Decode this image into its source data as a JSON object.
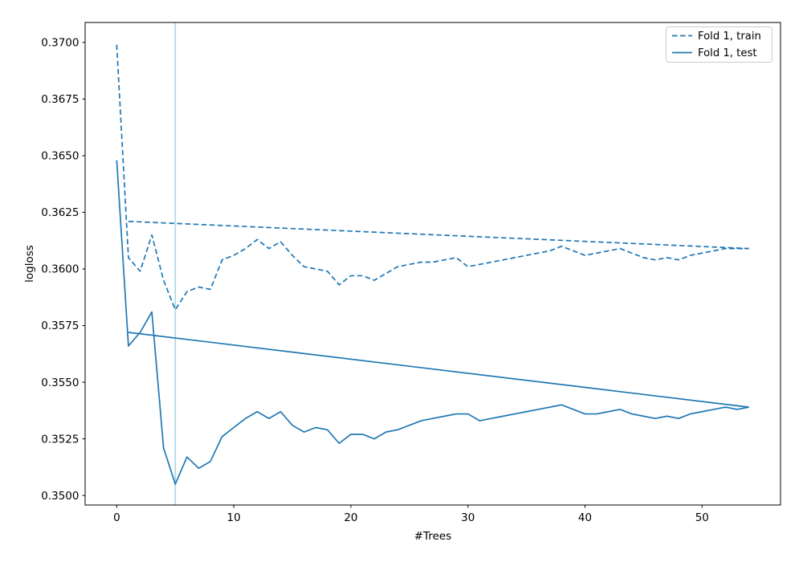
{
  "chart_data": {
    "type": "line",
    "title": "",
    "xlabel": "#Trees",
    "ylabel": "logloss",
    "xlim": [
      -2.7,
      56.7
    ],
    "ylim": [
      0.34958,
      0.37088
    ],
    "grid": false,
    "legend_position": "upper right",
    "x_tick_values": [
      0,
      10,
      20,
      30,
      40,
      50
    ],
    "x_tick_labels": [
      "0",
      "10",
      "20",
      "30",
      "40",
      "50"
    ],
    "y_tick_values": [
      0.35,
      0.3525,
      0.355,
      0.3575,
      0.36,
      0.3625,
      0.365,
      0.3675,
      0.37
    ],
    "y_tick_labels": [
      "0.3500",
      "0.3525",
      "0.3550",
      "0.3575",
      "0.3600",
      "0.3625",
      "0.3650",
      "0.3675",
      "0.3700"
    ],
    "vline": {
      "x": 5,
      "color": "#add8e6"
    },
    "series": [
      {
        "name": "Fold 1, train",
        "style": "dashed",
        "color": "#1f77b4",
        "x": [
          0,
          1,
          2,
          3,
          4,
          5,
          6,
          7,
          8,
          9,
          10,
          11,
          12,
          13,
          14,
          15,
          16,
          17,
          18,
          19,
          20,
          21,
          22,
          23,
          24,
          25,
          26,
          27,
          28,
          29,
          30,
          31,
          32,
          33,
          34,
          35,
          36,
          37,
          38,
          39,
          40,
          41,
          42,
          43,
          44,
          45,
          46,
          47,
          48,
          49,
          50,
          51,
          52,
          53,
          54
        ],
        "values": [
          0.3699,
          0.3605,
          0.3599,
          0.3615,
          0.3595,
          0.3582,
          0.359,
          0.3592,
          0.3591,
          0.3604,
          0.3606,
          0.3609,
          0.3613,
          0.3609,
          0.3612,
          0.3606,
          0.3601,
          0.36,
          0.3599,
          0.3593,
          0.3597,
          0.3597,
          0.3595,
          0.3598,
          0.3601,
          0.3602,
          0.3603,
          0.3603,
          0.3604,
          0.3605,
          0.3601,
          0.3602,
          0.3603,
          0.3604,
          0.3605,
          0.3606,
          0.3607,
          0.3608,
          0.361,
          0.3608,
          0.3606,
          0.3607,
          0.3608,
          0.3609,
          0.3607,
          0.3605,
          0.3604,
          0.3605,
          0.3604,
          0.3606,
          0.3607,
          0.3608,
          0.3609,
          0.3609,
          0.3609
        ],
        "connector_segment": {
          "x": [
            1,
            54
          ],
          "values": [
            0.3621,
            0.3609
          ]
        }
      },
      {
        "name": "Fold 1, test",
        "style": "solid",
        "color": "#1f77b4",
        "x": [
          0,
          1,
          2,
          3,
          4,
          5,
          6,
          7,
          8,
          9,
          10,
          11,
          12,
          13,
          14,
          15,
          16,
          17,
          18,
          19,
          20,
          21,
          22,
          23,
          24,
          25,
          26,
          27,
          28,
          29,
          30,
          31,
          32,
          33,
          34,
          35,
          36,
          37,
          38,
          39,
          40,
          41,
          42,
          43,
          44,
          45,
          46,
          47,
          48,
          49,
          50,
          51,
          52,
          53,
          54
        ],
        "values": [
          0.3648,
          0.3566,
          0.3572,
          0.3581,
          0.3521,
          0.3505,
          0.3517,
          0.3512,
          0.3515,
          0.3526,
          0.353,
          0.3534,
          0.3537,
          0.3534,
          0.3537,
          0.3531,
          0.3528,
          0.353,
          0.3529,
          0.3523,
          0.3527,
          0.3527,
          0.3525,
          0.3528,
          0.3529,
          0.3531,
          0.3533,
          0.3534,
          0.3535,
          0.3536,
          0.3536,
          0.3533,
          0.3534,
          0.3535,
          0.3536,
          0.3537,
          0.3538,
          0.3539,
          0.354,
          0.3538,
          0.3536,
          0.3536,
          0.3537,
          0.3538,
          0.3536,
          0.3535,
          0.3534,
          0.3535,
          0.3534,
          0.3536,
          0.3537,
          0.3538,
          0.3539,
          0.3538,
          0.3539
        ],
        "connector_segment": {
          "x": [
            1,
            54
          ],
          "values": [
            0.3572,
            0.3539
          ]
        }
      }
    ],
    "axis_color": "#000000",
    "background_color": "#ffffff"
  }
}
